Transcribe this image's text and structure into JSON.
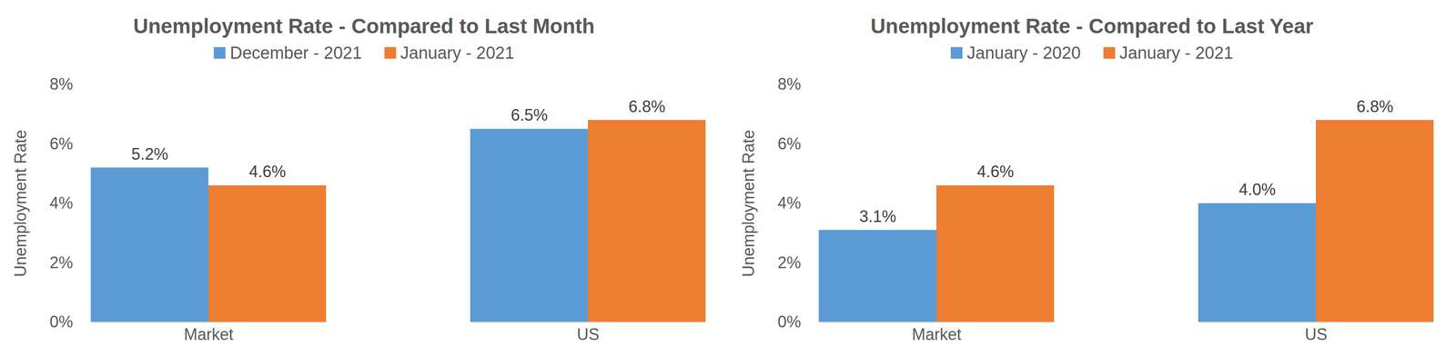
{
  "chart_data": [
    {
      "type": "bar",
      "title": "Unemployment Rate - Compared to Last Month",
      "ylabel": "Unemployment Rate",
      "categories": [
        "Market",
        "US"
      ],
      "series": [
        {
          "name": "December - 2021",
          "color": "#5b9bd5",
          "values": [
            5.2,
            6.5
          ],
          "value_labels": [
            "5.2%",
            "6.5%"
          ]
        },
        {
          "name": "January - 2021",
          "color": "#ed7d31",
          "values": [
            4.6,
            6.8
          ],
          "value_labels": [
            "4.6%",
            "6.8%"
          ]
        }
      ],
      "ylim": [
        0,
        8
      ],
      "yticks": [
        {
          "value": 0,
          "label": "0%"
        },
        {
          "value": 2,
          "label": "2%"
        },
        {
          "value": 4,
          "label": "4%"
        },
        {
          "value": 6,
          "label": "6%"
        },
        {
          "value": 8,
          "label": "8%"
        }
      ],
      "grid": false,
      "legend": "top",
      "data_labels": true
    },
    {
      "type": "bar",
      "title": "Unemployment Rate - Compared to Last Year",
      "ylabel": "Unemployment Rate",
      "categories": [
        "Market",
        "US"
      ],
      "series": [
        {
          "name": "January - 2020",
          "color": "#5b9bd5",
          "values": [
            3.1,
            4.0
          ],
          "value_labels": [
            "3.1%",
            "4.0%"
          ]
        },
        {
          "name": "January - 2021",
          "color": "#ed7d31",
          "values": [
            4.6,
            6.8
          ],
          "value_labels": [
            "4.6%",
            "6.8%"
          ]
        }
      ],
      "ylim": [
        0,
        8
      ],
      "yticks": [
        {
          "value": 0,
          "label": "0%"
        },
        {
          "value": 2,
          "label": "2%"
        },
        {
          "value": 4,
          "label": "4%"
        },
        {
          "value": 6,
          "label": "6%"
        },
        {
          "value": 8,
          "label": "8%"
        }
      ],
      "grid": false,
      "legend": "top",
      "data_labels": true
    }
  ]
}
